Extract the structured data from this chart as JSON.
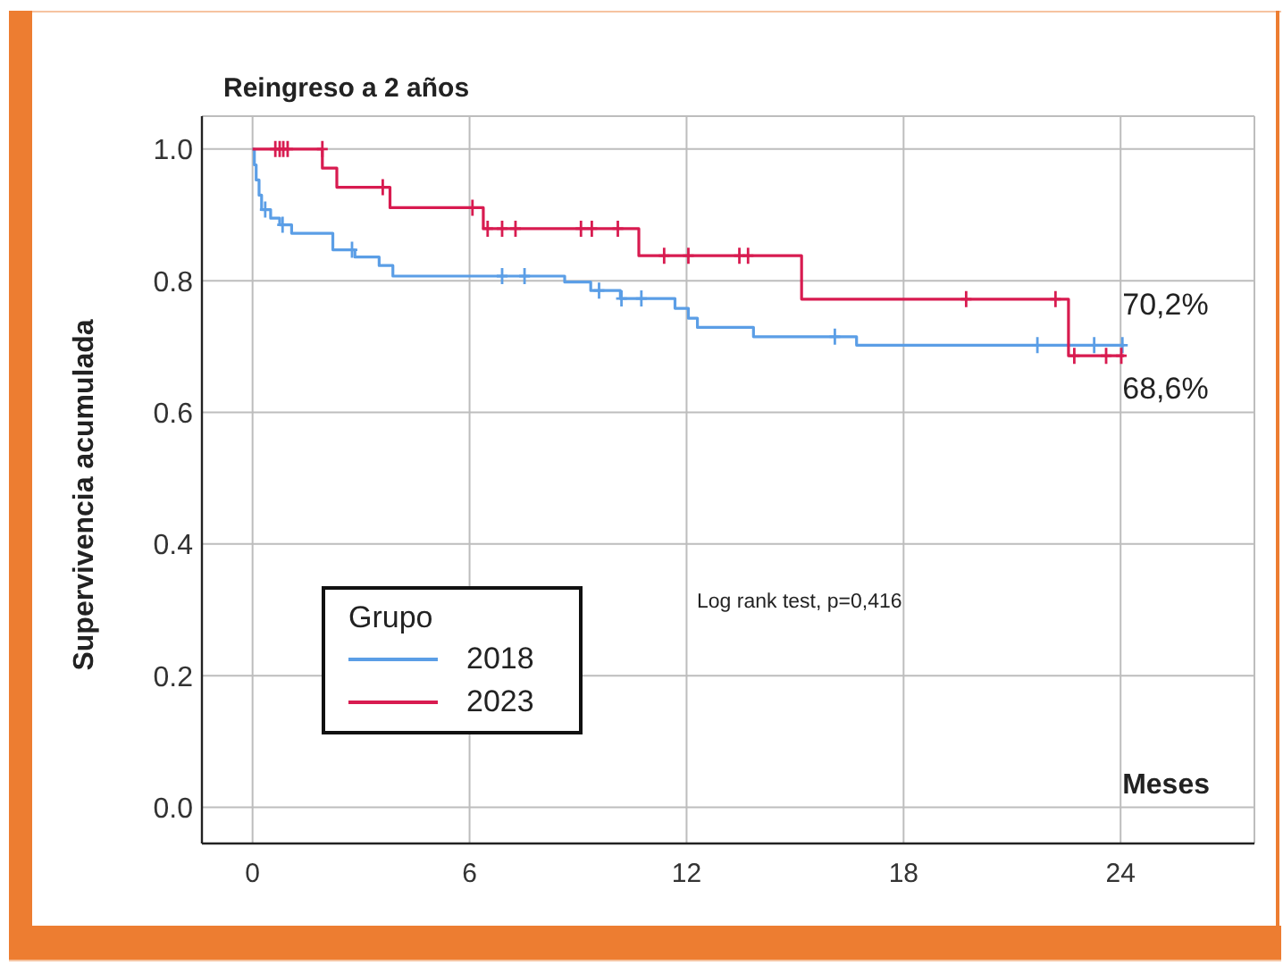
{
  "chart_data": {
    "type": "step",
    "title": "Reingreso a 2 años",
    "xlabel": "Meses",
    "ylabel": "Supervivencia acumulada",
    "legend_title": "Grupo",
    "xlim": [
      -1.4,
      27.7
    ],
    "ylim": [
      -0.055,
      1.05
    ],
    "xticks": [
      0,
      6,
      12,
      18,
      24
    ],
    "yticks": [
      {
        "value": 0,
        "label": "0.0"
      },
      0.2,
      0.4,
      0.6,
      0.8,
      {
        "value": 1,
        "label": "1.0"
      }
    ],
    "grid": true,
    "legend": "bottom left",
    "annotations": [
      "Log rank test, p=0,416",
      {
        "text": "70,2%",
        "x": 24,
        "y": 0.702
      },
      {
        "text": "68,6%",
        "x": 24,
        "y": 0.686
      }
    ],
    "series": [
      {
        "name": "2018",
        "color": "#5b9ee6",
        "x": [
          0,
          0.05,
          0.1,
          0.18,
          0.25,
          0.5,
          0.75,
          1.08,
          2.22,
          2.83,
          3.5,
          3.88,
          8.63,
          9.35,
          10.17,
          11.68,
          12.05,
          12.3,
          13.85,
          16.7,
          24.1
        ],
        "values": [
          1.0,
          0.976,
          0.953,
          0.93,
          0.908,
          0.895,
          0.885,
          0.872,
          0.847,
          0.836,
          0.823,
          0.807,
          0.798,
          0.785,
          0.773,
          0.758,
          0.743,
          0.729,
          0.715,
          0.702,
          0.702
        ]
      },
      {
        "name": "2023",
        "color": "#d81b50",
        "x": [
          0,
          1.93,
          2.33,
          3.8,
          6.38,
          10.68,
          15.18,
          22.56,
          24.1
        ],
        "values": [
          1.0,
          0.971,
          0.942,
          0.911,
          0.879,
          0.838,
          0.772,
          0.686,
          0.686
        ]
      },
      {
        "color": "#5b9ee6",
        "type": "scatter",
        "marker": "cross",
        "x": [
          0.35,
          0.83,
          2.75,
          6.9,
          7.52,
          9.58,
          10.2,
          10.75,
          16.1,
          21.7,
          23.27,
          24.05
        ],
        "values": [
          0.908,
          0.885,
          0.847,
          0.807,
          0.807,
          0.785,
          0.773,
          0.773,
          0.715,
          0.702,
          0.702,
          0.702
        ]
      },
      {
        "color": "#d81b50",
        "type": "scatter",
        "marker": "cross",
        "x": [
          0.63,
          0.75,
          0.85,
          0.97,
          1.93,
          3.6,
          6.08,
          6.5,
          6.9,
          7.27,
          9.08,
          9.38,
          10.1,
          11.38,
          12.05,
          13.46,
          13.7,
          19.73,
          22.2,
          22.72,
          23.6,
          24.02
        ],
        "values": [
          1.0,
          1.0,
          1.0,
          1.0,
          1.0,
          0.942,
          0.911,
          0.879,
          0.879,
          0.879,
          0.879,
          0.879,
          0.879,
          0.838,
          0.838,
          0.838,
          0.838,
          0.772,
          0.772,
          0.686,
          0.686,
          0.686
        ]
      }
    ]
  }
}
